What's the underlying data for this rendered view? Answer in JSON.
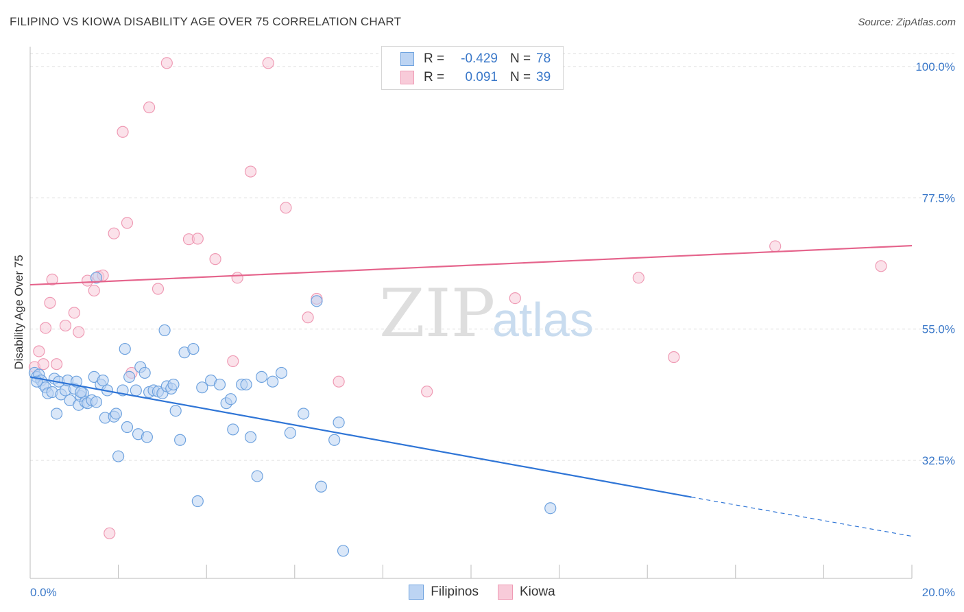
{
  "header": {
    "title": "FILIPINO VS KIOWA DISABILITY AGE OVER 75 CORRELATION CHART",
    "source": "Source: ZipAtlas.com"
  },
  "legend": {
    "rows": [
      {
        "r_label": "R =",
        "r_value": "-0.429",
        "n_label": "N =",
        "n_value": "78",
        "color": "#6fa3df",
        "fill": "#bcd4f3"
      },
      {
        "r_label": "R =",
        "r_value": "0.091",
        "n_label": "N =",
        "n_value": "39",
        "color": "#ef9ab4",
        "fill": "#f8cbd9"
      }
    ],
    "bottom": [
      {
        "label": "Filipinos",
        "color": "#6fa3df",
        "fill": "#bcd4f3"
      },
      {
        "label": "Kiowa",
        "color": "#ef9ab4",
        "fill": "#f8cbd9"
      }
    ]
  },
  "chart_data": {
    "type": "scatter",
    "ylabel": "Disability Age Over 75",
    "xlim": [
      0,
      20
    ],
    "ylim": [
      15,
      102
    ],
    "x_tick_labels": [
      "0.0%",
      "20.0%"
    ],
    "y_ticks": [
      32.5,
      55.0,
      77.5,
      100.0
    ],
    "y_tick_labels": [
      "32.5%",
      "55.0%",
      "77.5%",
      "100.0%"
    ],
    "grid": true,
    "watermark": "ZIPatlas",
    "colors": {
      "filipino_line": "#2f75d6",
      "kiowa_line": "#e5648c",
      "axis_text": "#3a78c9"
    },
    "series": [
      {
        "name": "Filipinos",
        "trend": {
          "x0": 0,
          "y0": 46.8,
          "x1": 15.0,
          "y1": 26.2,
          "x_dash_end": 20.0,
          "y_dash_end": 19.5
        },
        "points": [
          [
            0.1,
            47.5
          ],
          [
            0.15,
            46.8
          ],
          [
            0.2,
            47.2
          ],
          [
            0.25,
            46.2
          ],
          [
            0.3,
            45.5
          ],
          [
            0.35,
            45.0
          ],
          [
            0.4,
            44.0
          ],
          [
            0.5,
            44.2
          ],
          [
            0.55,
            46.5
          ],
          [
            0.6,
            40.5
          ],
          [
            0.65,
            46.0
          ],
          [
            0.7,
            43.8
          ],
          [
            0.8,
            44.5
          ],
          [
            0.85,
            46.2
          ],
          [
            0.9,
            42.8
          ],
          [
            1.0,
            44.8
          ],
          [
            1.05,
            46.0
          ],
          [
            1.1,
            42.0
          ],
          [
            1.15,
            43.5
          ],
          [
            1.2,
            44.0
          ],
          [
            1.25,
            42.5
          ],
          [
            1.3,
            42.3
          ],
          [
            1.4,
            42.8
          ],
          [
            1.45,
            46.8
          ],
          [
            1.5,
            42.5
          ],
          [
            1.6,
            45.5
          ],
          [
            1.65,
            46.2
          ],
          [
            1.7,
            39.8
          ],
          [
            1.75,
            44.5
          ],
          [
            1.9,
            40.0
          ],
          [
            1.95,
            40.5
          ],
          [
            2.0,
            33.2
          ],
          [
            2.1,
            44.5
          ],
          [
            2.15,
            51.6
          ],
          [
            2.2,
            38.2
          ],
          [
            2.25,
            46.8
          ],
          [
            2.4,
            44.5
          ],
          [
            2.45,
            37.0
          ],
          [
            2.5,
            48.5
          ],
          [
            2.6,
            47.5
          ],
          [
            2.65,
            36.5
          ],
          [
            2.7,
            44.2
          ],
          [
            2.8,
            44.5
          ],
          [
            2.9,
            44.3
          ],
          [
            3.0,
            44.0
          ],
          [
            3.05,
            54.8
          ],
          [
            3.1,
            45.2
          ],
          [
            3.2,
            44.8
          ],
          [
            3.25,
            45.5
          ],
          [
            3.3,
            41.0
          ],
          [
            3.4,
            36.0
          ],
          [
            3.5,
            51.0
          ],
          [
            3.7,
            51.6
          ],
          [
            3.8,
            25.5
          ],
          [
            3.9,
            45.0
          ],
          [
            4.1,
            46.2
          ],
          [
            4.3,
            45.5
          ],
          [
            4.45,
            42.3
          ],
          [
            4.55,
            43.0
          ],
          [
            4.6,
            37.8
          ],
          [
            4.8,
            45.5
          ],
          [
            4.9,
            45.5
          ],
          [
            5.0,
            36.5
          ],
          [
            5.15,
            29.8
          ],
          [
            5.25,
            46.8
          ],
          [
            5.5,
            46.0
          ],
          [
            5.7,
            47.5
          ],
          [
            5.9,
            37.2
          ],
          [
            6.2,
            40.5
          ],
          [
            6.5,
            59.8
          ],
          [
            6.6,
            28.0
          ],
          [
            6.9,
            36.0
          ],
          [
            7.0,
            39.0
          ],
          [
            7.1,
            17.0
          ],
          [
            11.8,
            24.3
          ],
          [
            1.5,
            63.8
          ],
          [
            0.15,
            46.0
          ],
          [
            1.15,
            44.2
          ]
        ]
      },
      {
        "name": "Kiowa",
        "trend": {
          "x0": 0,
          "y0": 62.6,
          "x1": 20.0,
          "y1": 69.3
        },
        "points": [
          [
            0.1,
            48.5
          ],
          [
            0.2,
            51.2
          ],
          [
            0.3,
            49.0
          ],
          [
            0.35,
            55.2
          ],
          [
            0.45,
            59.5
          ],
          [
            0.5,
            63.5
          ],
          [
            0.6,
            49.0
          ],
          [
            0.8,
            55.6
          ],
          [
            1.0,
            57.8
          ],
          [
            1.1,
            54.5
          ],
          [
            1.3,
            63.3
          ],
          [
            1.45,
            61.6
          ],
          [
            1.55,
            64.0
          ],
          [
            1.65,
            64.2
          ],
          [
            1.8,
            20.0
          ],
          [
            1.9,
            71.4
          ],
          [
            2.1,
            88.8
          ],
          [
            2.2,
            73.2
          ],
          [
            2.3,
            47.5
          ],
          [
            2.7,
            93.0
          ],
          [
            2.9,
            61.9
          ],
          [
            3.1,
            100.6
          ],
          [
            3.6,
            70.4
          ],
          [
            3.8,
            70.5
          ],
          [
            4.2,
            67.0
          ],
          [
            4.6,
            49.5
          ],
          [
            4.7,
            63.8
          ],
          [
            5.0,
            82.0
          ],
          [
            5.4,
            100.6
          ],
          [
            5.8,
            75.8
          ],
          [
            6.3,
            57.0
          ],
          [
            6.5,
            60.2
          ],
          [
            7.0,
            46.0
          ],
          [
            9.0,
            44.3
          ],
          [
            11.0,
            60.3
          ],
          [
            13.8,
            63.8
          ],
          [
            14.6,
            50.2
          ],
          [
            16.9,
            69.2
          ],
          [
            19.3,
            65.8
          ]
        ]
      }
    ]
  }
}
